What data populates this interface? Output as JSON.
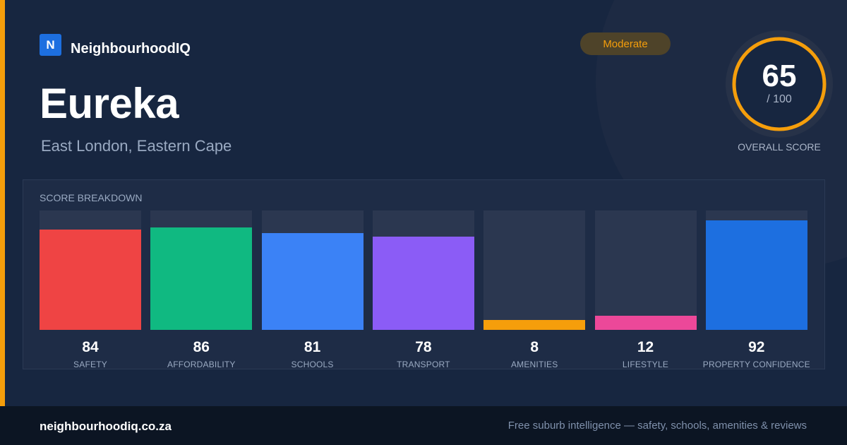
{
  "brand": {
    "logo_letter": "N",
    "name": "NeighbourhoodIQ",
    "logo_color": "#1d6fe0"
  },
  "suburb": {
    "name": "Eureka",
    "location": "East London, Eastern Cape"
  },
  "rating_badge": {
    "label": "Moderate",
    "color": "#f59e0b"
  },
  "overall": {
    "score": "65",
    "out_of": "/ 100",
    "label": "OVERALL SCORE",
    "score_value": 65,
    "max_value": 100,
    "ring_color": "#f59e0b"
  },
  "breakdown": {
    "heading": "SCORE BREAKDOWN",
    "items": [
      {
        "label": "SAFETY",
        "value": "84",
        "score": 84,
        "color": "#ef4444"
      },
      {
        "label": "AFFORDABILITY",
        "value": "86",
        "score": 86,
        "color": "#10b981"
      },
      {
        "label": "SCHOOLS",
        "value": "81",
        "score": 81,
        "color": "#3b82f6"
      },
      {
        "label": "TRANSPORT",
        "value": "78",
        "score": 78,
        "color": "#8b5cf6"
      },
      {
        "label": "AMENITIES",
        "value": "8",
        "score": 8,
        "color": "#f59e0b"
      },
      {
        "label": "LIFESTYLE",
        "value": "12",
        "score": 12,
        "color": "#ec4899"
      },
      {
        "label": "PROPERTY CONFIDENCE",
        "value": "92",
        "score": 92,
        "color": "#1d6fe0"
      }
    ]
  },
  "footer": {
    "url": "neighbourhoodiq.co.za",
    "tagline": "Free suburb intelligence — safety, schools, amenities & reviews"
  },
  "colors": {
    "accent": "#f59e0b",
    "background": "#172640",
    "footer_bg": "#0c1523"
  }
}
